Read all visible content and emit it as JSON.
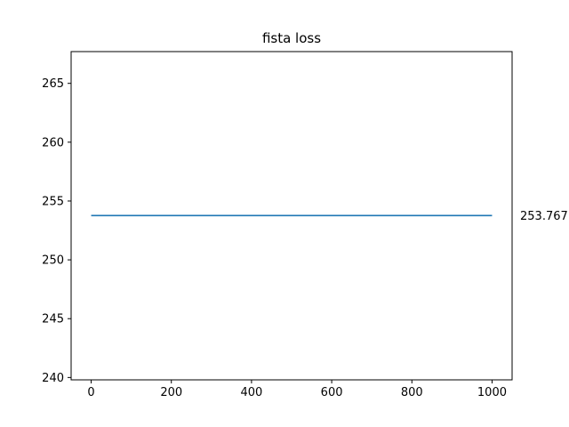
{
  "chart_data": {
    "type": "line",
    "title": "fista loss",
    "xlabel": "",
    "ylabel": "",
    "xlim": [
      -50,
      1050
    ],
    "ylim": [
      239.8,
      267.7
    ],
    "xticks": [
      0,
      200,
      400,
      600,
      800,
      1000
    ],
    "yticks": [
      240,
      245,
      250,
      255,
      260,
      265
    ],
    "grid": false,
    "legend": "none",
    "series": [
      {
        "color": "#1f77b4",
        "x": [
          0,
          1000
        ],
        "y": [
          253.767,
          253.767
        ]
      }
    ],
    "annotations": [
      {
        "text": "253.767",
        "x": 1070,
        "y": 253.767
      }
    ]
  }
}
